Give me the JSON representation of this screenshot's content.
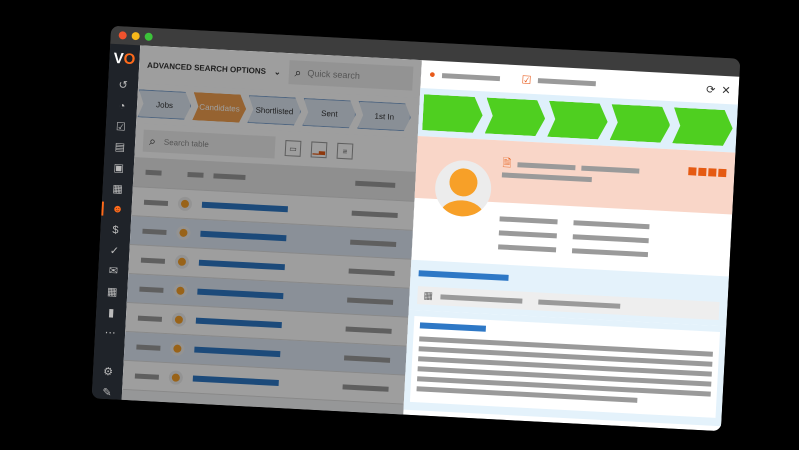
{
  "window": {
    "controls": [
      "close",
      "minimize",
      "maximize"
    ]
  },
  "sidebar": {
    "logo": "VO",
    "icons": [
      "history-icon",
      "dashboard-icon",
      "tasks-icon",
      "notes-icon",
      "contacts-icon",
      "briefcase-icon",
      "candidates-icon",
      "dollar-icon",
      "check-circle-icon",
      "mail-icon",
      "calendar-icon",
      "chart-icon",
      "more-icon",
      "settings-icon",
      "edit-icon"
    ],
    "active": "candidates-icon"
  },
  "header": {
    "advanced_search": "ADVANCED SEARCH OPTIONS",
    "quick_search_placeholder": "Quick search"
  },
  "pipeline": [
    {
      "label": "Jobs"
    },
    {
      "label": "Candidates",
      "active": true
    },
    {
      "label": "Shortlisted"
    },
    {
      "label": "Sent"
    },
    {
      "label": "1st In"
    }
  ],
  "table": {
    "search_placeholder": "Search table",
    "row_count": 7
  },
  "colors": {
    "accent": "#ff6a1a",
    "pipeline_active": "#f3a14f",
    "progress": "#4fcf20",
    "link": "#2e78c6",
    "profile_bg": "#f9d6c8"
  },
  "detail": {
    "progress_steps_completed": 5,
    "progress_steps_total": 5,
    "rating_squares": 4
  }
}
